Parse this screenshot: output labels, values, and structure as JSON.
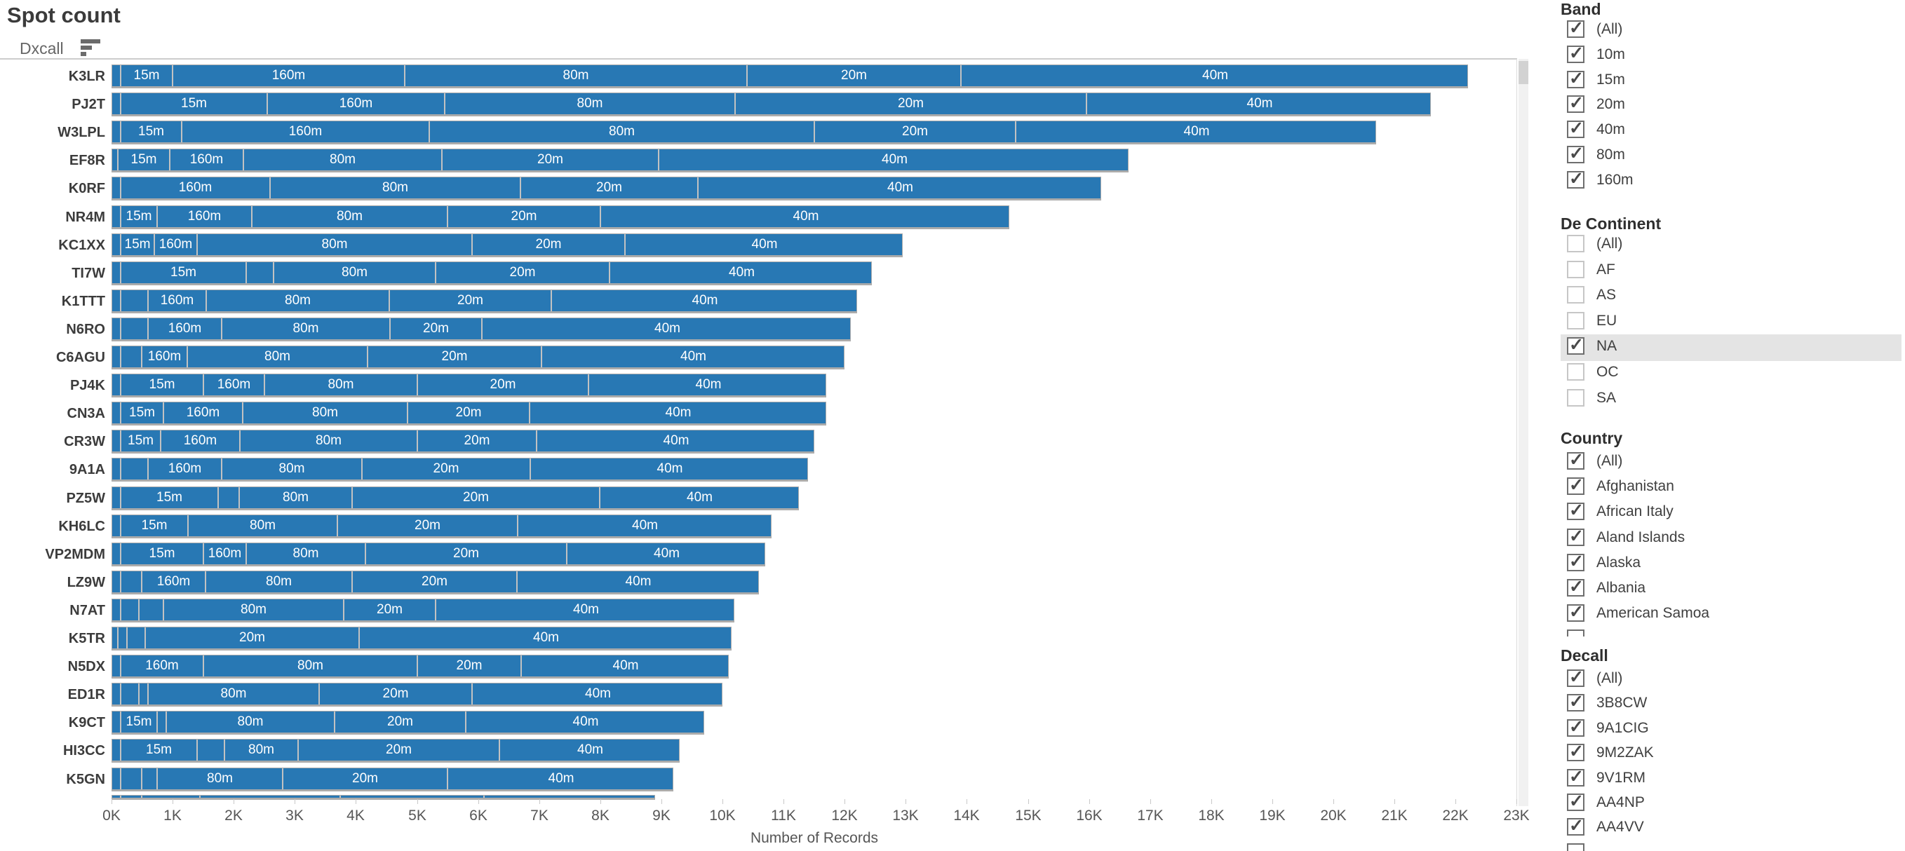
{
  "title": "Spot count",
  "chart": {
    "row_header": "Dxcall",
    "x_axis_title": "Number of Records",
    "tick_labels": [
      "0K",
      "1K",
      "2K",
      "3K",
      "4K",
      "5K",
      "6K",
      "7K",
      "8K",
      "9K",
      "10K",
      "11K",
      "12K",
      "13K",
      "14K",
      "15K",
      "16K",
      "17K",
      "18K",
      "19K",
      "20K",
      "21K",
      "22K",
      "23K"
    ],
    "colors": {
      "bar": "#2878B4",
      "bar_border": "#ABABAB",
      "segment_separator": "#C2C2C2",
      "highlight_row": "#E4E4E4"
    }
  },
  "chart_data": {
    "type": "bar",
    "orientation": "horizontal",
    "stacked": true,
    "title": "Spot count",
    "xlabel": "Number of Records",
    "ylabel": "Dxcall",
    "xlim": [
      0,
      23000
    ],
    "grid": false,
    "sort": "descending by total",
    "categories": [
      "K3LR",
      "PJ2T",
      "W3LPL",
      "EF8R",
      "K0RF",
      "NR4M",
      "KC1XX",
      "TI7W",
      "K1TTT",
      "N6RO",
      "C6AGU",
      "PJ4K",
      "CN3A",
      "CR3W",
      "9A1A",
      "PZ5W",
      "KH6LC",
      "VP2MDM",
      "LZ9W",
      "N7AT",
      "K5TR",
      "N5DX",
      "ED1R",
      "K9CT",
      "HI3CC",
      "K5GN"
    ],
    "series": [
      {
        "name": "10m",
        "values": [
          150,
          150,
          150,
          100,
          0,
          150,
          150,
          150,
          150,
          150,
          150,
          150,
          150,
          150,
          150,
          150,
          150,
          150,
          150,
          150,
          100,
          0,
          150,
          150,
          150,
          150
        ]
      },
      {
        "name": "15m",
        "values": [
          850,
          2400,
          1000,
          850,
          150,
          600,
          550,
          2050,
          450,
          450,
          350,
          1350,
          700,
          650,
          450,
          1600,
          1100,
          1350,
          350,
          300,
          150,
          150,
          300,
          600,
          1250,
          350
        ]
      },
      {
        "name": "160m",
        "values": [
          3800,
          2900,
          4050,
          1200,
          2450,
          1550,
          700,
          450,
          950,
          1200,
          750,
          1000,
          1300,
          1300,
          1200,
          350,
          0,
          700,
          1050,
          400,
          0,
          1350,
          150,
          150,
          450,
          250
        ]
      },
      {
        "name": "80m",
        "values": [
          5600,
          4750,
          6300,
          3250,
          4100,
          3200,
          4500,
          2650,
          3000,
          2750,
          2950,
          2500,
          2700,
          2900,
          2300,
          1850,
          2450,
          1950,
          2400,
          2950,
          300,
          3500,
          2800,
          2750,
          1200,
          2050
        ]
      },
      {
        "name": "20m",
        "values": [
          3500,
          5750,
          3300,
          3550,
          2900,
          2500,
          2500,
          2850,
          2650,
          1500,
          2850,
          2800,
          2000,
          1950,
          2750,
          4050,
          2950,
          3300,
          2700,
          1500,
          3500,
          1700,
          2500,
          2150,
          3300,
          2700
        ]
      },
      {
        "name": "40m",
        "values": [
          8300,
          5650,
          5900,
          7700,
          6600,
          6700,
          4550,
          4300,
          5000,
          6050,
          4950,
          3900,
          4850,
          4550,
          4550,
          3250,
          4150,
          3250,
          3950,
          4900,
          6100,
          3400,
          4100,
          3900,
          2950,
          3700
        ]
      }
    ],
    "partial_next_row_values": [
      150,
      350,
      950,
      2300,
      2350,
      2800
    ],
    "segment_label_min_value": 500
  },
  "filters": [
    {
      "title": "Band",
      "items": [
        {
          "label": "(All)",
          "checked": true
        },
        {
          "label": "10m",
          "checked": true
        },
        {
          "label": "15m",
          "checked": true
        },
        {
          "label": "20m",
          "checked": true
        },
        {
          "label": "40m",
          "checked": true
        },
        {
          "label": "80m",
          "checked": true
        },
        {
          "label": "160m",
          "checked": true
        }
      ],
      "clipped_extra_checkbox": false
    },
    {
      "title": "De Continent",
      "items": [
        {
          "label": "(All)",
          "checked": false
        },
        {
          "label": "AF",
          "checked": false
        },
        {
          "label": "AS",
          "checked": false
        },
        {
          "label": "EU",
          "checked": false
        },
        {
          "label": "NA",
          "checked": true,
          "highlight": true
        },
        {
          "label": "OC",
          "checked": false
        },
        {
          "label": "SA",
          "checked": false
        }
      ],
      "clipped_extra_checkbox": false
    },
    {
      "title": "Country",
      "items": [
        {
          "label": "(All)",
          "checked": true
        },
        {
          "label": "Afghanistan",
          "checked": true
        },
        {
          "label": "African Italy",
          "checked": true
        },
        {
          "label": "Aland Islands",
          "checked": true
        },
        {
          "label": "Alaska",
          "checked": true
        },
        {
          "label": "Albania",
          "checked": true
        },
        {
          "label": "American Samoa",
          "checked": true
        }
      ],
      "clipped_extra_checkbox": true
    },
    {
      "title": "Decall",
      "items": [
        {
          "label": "(All)",
          "checked": true
        },
        {
          "label": "3B8CW",
          "checked": true
        },
        {
          "label": "9A1CIG",
          "checked": true
        },
        {
          "label": "9M2ZAK",
          "checked": true
        },
        {
          "label": "9V1RM",
          "checked": true
        },
        {
          "label": "AA4NP",
          "checked": true
        },
        {
          "label": "AA4VV",
          "checked": true
        }
      ],
      "clipped_extra_checkbox": true
    }
  ]
}
